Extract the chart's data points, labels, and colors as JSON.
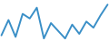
{
  "values": [
    5.0,
    10.0,
    4.5,
    12.0,
    10.5,
    14.0,
    4.0,
    9.0,
    6.5,
    4.0,
    8.5,
    5.5,
    9.5,
    7.5,
    11.5,
    15.0
  ],
  "line_color": "#3a8fc7",
  "background_color": "#ffffff",
  "linewidth": 1.4
}
